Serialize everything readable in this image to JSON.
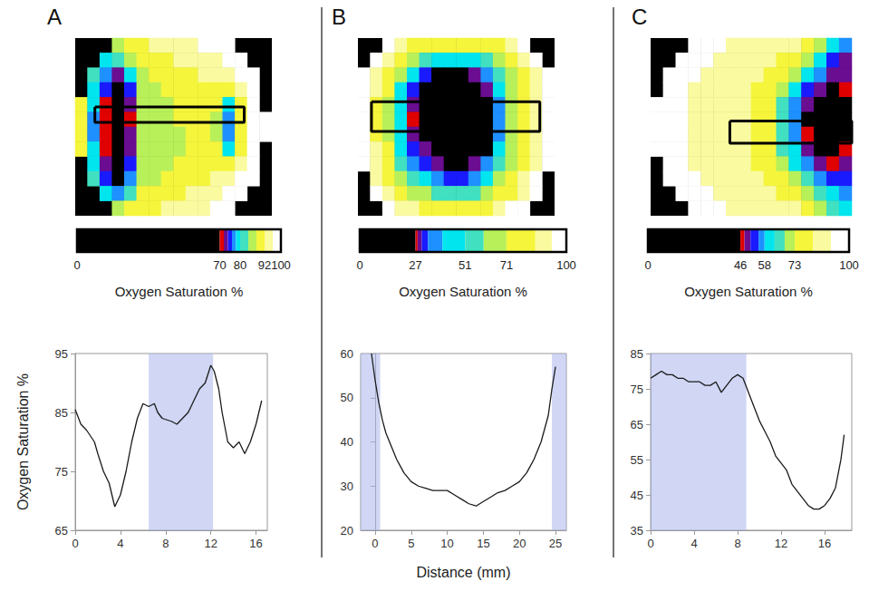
{
  "chart_data": [
    {
      "panel": "A",
      "type": "line",
      "heatmap": {
        "cells": [
          [
            null,
            null,
            null,
            85,
            88,
            90,
            92,
            93,
            94,
            95,
            96,
            97,
            98,
            null,
            null,
            null
          ],
          [
            null,
            null,
            78,
            80,
            86,
            88,
            90,
            91,
            92,
            93,
            94,
            95,
            97,
            99,
            null,
            null
          ],
          [
            null,
            82,
            76,
            72,
            78,
            86,
            88,
            89,
            90,
            91,
            92,
            93,
            94,
            97,
            99,
            null
          ],
          [
            null,
            79,
            74,
            68,
            75,
            85,
            87,
            88,
            89,
            90,
            91,
            90,
            88,
            95,
            99,
            null
          ],
          [
            90,
            78,
            71,
            60,
            72,
            84,
            86,
            87,
            88,
            89,
            90,
            88,
            79,
            90,
            98,
            null
          ],
          [
            88,
            77,
            70,
            55,
            71,
            84,
            86,
            87,
            88,
            89,
            90,
            86,
            77,
            89,
            98,
            99
          ],
          [
            88,
            77,
            70,
            58,
            72,
            84,
            86,
            86,
            87,
            88,
            90,
            86,
            77,
            89,
            98,
            99
          ],
          [
            90,
            78,
            71,
            50,
            72,
            84,
            85,
            86,
            87,
            88,
            90,
            88,
            79,
            90,
            98,
            null
          ],
          [
            null,
            79,
            72,
            55,
            74,
            85,
            86,
            87,
            88,
            89,
            91,
            90,
            88,
            95,
            99,
            null
          ],
          [
            null,
            81,
            75,
            69,
            77,
            86,
            87,
            88,
            89,
            90,
            91,
            92,
            93,
            97,
            99,
            null
          ],
          [
            null,
            null,
            78,
            76,
            83,
            88,
            89,
            90,
            91,
            92,
            93,
            94,
            96,
            99,
            null,
            null
          ],
          [
            null,
            null,
            null,
            84,
            88,
            90,
            91,
            92,
            93,
            94,
            95,
            96,
            98,
            null,
            null,
            null
          ]
        ],
        "profile_box": [
          1.6,
          13.75,
          4.65,
          5.7
        ]
      },
      "color_bar": {
        "title": "Oxygen Saturation %",
        "range": [
          0,
          100
        ],
        "ticks": [
          0,
          70,
          80,
          92,
          100
        ],
        "bounds": [
          0,
          70,
          72,
          74,
          76,
          78,
          80,
          84,
          88,
          92,
          96,
          100
        ],
        "colors": [
          "#000000",
          "#e00000",
          "#6a0d91",
          "#1a1aff",
          "#1e90ff",
          "#00e5ee",
          "#40e0c0",
          "#b8f05a",
          "#f5f53c",
          "#fafaa0",
          "#ffffff"
        ]
      },
      "x": [
        0,
        0.5,
        1,
        1.7,
        2,
        2.5,
        3,
        3.5,
        4,
        4.5,
        5,
        5.5,
        6,
        6.5,
        7,
        7.3,
        7.7,
        8.5,
        9,
        9.5,
        10,
        10.5,
        11,
        11.5,
        12,
        12.3,
        12.7,
        13,
        13.5,
        14,
        14.5,
        15,
        15.5,
        16,
        16.5
      ],
      "values": [
        85.5,
        83,
        82,
        80,
        78,
        75,
        73,
        69,
        71,
        75,
        80,
        84,
        86.5,
        86,
        86.5,
        85,
        84,
        83.5,
        83,
        84,
        85,
        87,
        89,
        90,
        93,
        92,
        89,
        85,
        80,
        79,
        80,
        78,
        80,
        83,
        87
      ],
      "color": "#1a1a1a",
      "shaded": [
        [
          6.5,
          12.2
        ]
      ],
      "xlim": [
        0,
        17
      ],
      "xticks": [
        0,
        4,
        8,
        12,
        16
      ],
      "ylim": [
        65,
        95
      ],
      "yticks": [
        65,
        75,
        85,
        95
      ],
      "ylabel": "Oxygen Saturation %"
    },
    {
      "panel": "B",
      "type": "line",
      "heatmap": {
        "cells": [
          [
            null,
            null,
            95,
            90,
            84,
            78,
            75,
            74,
            74,
            75,
            78,
            84,
            90,
            95,
            null,
            null
          ],
          [
            null,
            95,
            88,
            78,
            68,
            55,
            45,
            40,
            42,
            48,
            58,
            70,
            80,
            88,
            95,
            null
          ],
          [
            96,
            90,
            78,
            62,
            40,
            30,
            24,
            20,
            22,
            28,
            36,
            55,
            70,
            82,
            92,
            97
          ],
          [
            94,
            86,
            72,
            50,
            30,
            20,
            15,
            10,
            12,
            18,
            28,
            42,
            66,
            80,
            90,
            96
          ],
          [
            93,
            84,
            70,
            46,
            28,
            18,
            12,
            8,
            6,
            10,
            22,
            38,
            64,
            78,
            89,
            95
          ],
          [
            93,
            84,
            69,
            45,
            27,
            17,
            10,
            5,
            5,
            8,
            20,
            36,
            63,
            78,
            89,
            95
          ],
          [
            93,
            84,
            70,
            46,
            28,
            25,
            18,
            6,
            5,
            8,
            20,
            37,
            64,
            78,
            89,
            95
          ],
          [
            94,
            86,
            72,
            50,
            31,
            28,
            24,
            12,
            8,
            14,
            26,
            42,
            66,
            80,
            90,
            96
          ],
          [
            95,
            88,
            75,
            58,
            38,
            31,
            29,
            26,
            24,
            28,
            34,
            52,
            70,
            82,
            92,
            97
          ],
          [
            null,
            92,
            82,
            70,
            55,
            40,
            34,
            32,
            32,
            36,
            48,
            64,
            76,
            86,
            94,
            null
          ],
          [
            null,
            96,
            90,
            80,
            70,
            60,
            55,
            54,
            54,
            58,
            66,
            74,
            84,
            92,
            97,
            null
          ],
          [
            null,
            null,
            96,
            92,
            86,
            80,
            76,
            75,
            75,
            77,
            82,
            88,
            94,
            97,
            null,
            null
          ]
        ],
        "profile_box": [
          1.1,
          14.8,
          4.3,
          6.3
        ]
      },
      "color_bar": {
        "title": "Oxygen Saturation %",
        "range": [
          0,
          100
        ],
        "ticks": [
          0,
          27,
          51,
          71,
          100
        ],
        "bounds": [
          0,
          27,
          28,
          30,
          33,
          40,
          51,
          60,
          71,
          85,
          93,
          100
        ],
        "colors": [
          "#000000",
          "#e00000",
          "#6a0d91",
          "#1a1aff",
          "#1e90ff",
          "#00e5ee",
          "#40e0c0",
          "#b8f05a",
          "#f5f53c",
          "#fafaa0",
          "#ffffff"
        ]
      },
      "x": [
        -0.5,
        0,
        0.5,
        1,
        1.5,
        2,
        3,
        4,
        5,
        6,
        7,
        8,
        9,
        10,
        11,
        12,
        13,
        14,
        15,
        16,
        17,
        18,
        19,
        20,
        21,
        22,
        23,
        24,
        24.5,
        25
      ],
      "values": [
        60,
        54,
        49,
        45,
        42,
        40,
        36,
        33,
        31,
        30,
        29.5,
        29,
        29,
        29,
        28,
        27,
        26,
        25.5,
        26.5,
        27.5,
        28.5,
        29,
        30,
        31,
        33,
        36,
        40,
        46,
        52,
        57
      ],
      "color": "#1a1a1a",
      "shaded": [
        [
          -2,
          0.7
        ],
        [
          24.5,
          26.5
        ]
      ],
      "xlim": [
        -2,
        26.5
      ],
      "xticks": [
        0,
        5,
        10,
        15,
        20,
        25
      ],
      "ylim": [
        20,
        60
      ],
      "yticks": [
        20,
        30,
        40,
        50,
        60
      ],
      "xlabel": "Distance (mm)"
    },
    {
      "panel": "C",
      "type": "line",
      "heatmap": {
        "cells": [
          [
            null,
            null,
            null,
            99,
            96,
            92,
            90,
            88,
            86,
            85,
            84,
            82,
            78,
            70,
            60,
            55
          ],
          [
            null,
            null,
            98,
            95,
            92,
            88,
            86,
            85,
            84,
            82,
            80,
            76,
            70,
            62,
            54,
            50
          ],
          [
            null,
            99,
            96,
            92,
            88,
            86,
            85,
            84,
            82,
            80,
            76,
            70,
            62,
            55,
            50,
            48
          ],
          [
            null,
            98,
            94,
            90,
            87,
            85,
            84,
            83,
            80,
            76,
            70,
            62,
            54,
            48,
            44,
            47
          ],
          [
            99,
            97,
            93,
            89,
            86,
            84,
            83,
            82,
            79,
            74,
            66,
            57,
            48,
            40,
            32,
            45
          ],
          [
            99,
            97,
            93,
            89,
            86,
            84,
            83,
            82,
            78,
            73,
            65,
            55,
            45,
            30,
            20,
            44
          ],
          [
            99,
            97,
            93,
            89,
            86,
            84,
            83,
            82,
            78,
            73,
            65,
            55,
            46,
            32,
            22,
            44
          ],
          [
            99,
            97,
            93,
            89,
            86,
            84,
            83,
            82,
            79,
            74,
            67,
            58,
            49,
            42,
            36,
            46
          ],
          [
            null,
            98,
            94,
            90,
            87,
            85,
            84,
            83,
            80,
            76,
            70,
            62,
            55,
            50,
            47,
            49
          ],
          [
            null,
            99,
            96,
            92,
            88,
            86,
            85,
            84,
            82,
            80,
            76,
            70,
            63,
            56,
            52,
            52
          ],
          [
            null,
            null,
            98,
            95,
            92,
            88,
            86,
            85,
            84,
            82,
            80,
            76,
            70,
            64,
            58,
            56
          ],
          [
            null,
            null,
            null,
            99,
            96,
            92,
            90,
            88,
            86,
            85,
            84,
            82,
            78,
            72,
            64,
            60
          ]
        ],
        "profile_box": [
          6.3,
          16,
          5.6,
          7.1
        ]
      },
      "color_bar": {
        "title": "Oxygen Saturation %",
        "range": [
          0,
          100
        ],
        "ticks": [
          0,
          46,
          58,
          73,
          100
        ],
        "bounds": [
          0,
          46,
          48,
          51,
          55,
          58,
          63,
          68,
          73,
          82,
          91,
          100
        ],
        "colors": [
          "#000000",
          "#e00000",
          "#6a0d91",
          "#1a1aff",
          "#1e90ff",
          "#00e5ee",
          "#40e0c0",
          "#b8f05a",
          "#f5f53c",
          "#fafaa0",
          "#ffffff"
        ]
      },
      "x": [
        0,
        0.5,
        1,
        1.5,
        2,
        2.5,
        3,
        3.5,
        4,
        4.5,
        5,
        5.5,
        6,
        6.5,
        7,
        7.5,
        8,
        8.5,
        9,
        9.5,
        10,
        10.5,
        11,
        11.5,
        12,
        12.5,
        13,
        13.5,
        14,
        14.5,
        15,
        15.5,
        16,
        16.5,
        17,
        17.5,
        17.8
      ],
      "values": [
        78,
        79,
        80,
        79,
        79,
        78,
        78,
        77,
        77,
        77,
        76,
        76,
        77,
        74,
        76,
        78,
        79,
        78,
        74,
        70,
        66,
        63,
        60,
        56,
        54,
        52,
        48,
        46,
        44,
        42,
        41,
        41,
        42,
        44,
        47,
        55,
        62
      ],
      "color": "#1a1a1a",
      "shaded": [
        [
          0,
          8.8
        ]
      ],
      "xlim": [
        0,
        18.5
      ],
      "xticks": [
        0,
        4,
        8,
        12,
        16
      ],
      "ylim": [
        35,
        85
      ],
      "yticks": [
        35,
        45,
        55,
        65,
        75,
        85
      ]
    }
  ]
}
